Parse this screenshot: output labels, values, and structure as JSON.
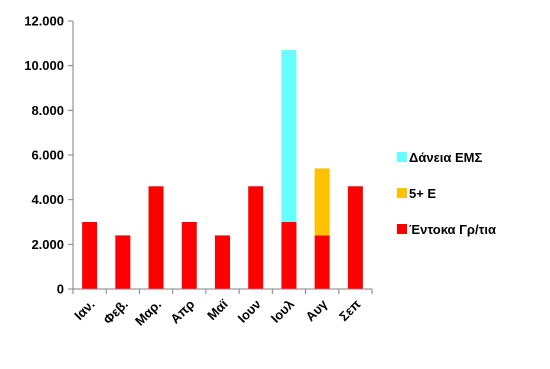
{
  "chart_data": {
    "type": "bar",
    "stacked": true,
    "categories": [
      "Ιαν.",
      "Φεβ.",
      "Μαρ.",
      "Απρ",
      "Μαϊ",
      "Ιουν",
      "Ιουλ",
      "Αυγ",
      "Σεπ"
    ],
    "series": [
      {
        "name": "Έντοκα Γρ/τια",
        "color": "#ff0000",
        "values": [
          3000,
          2400,
          4600,
          3000,
          2400,
          4600,
          3000,
          2400,
          4600
        ]
      },
      {
        "name": "5+ Ε",
        "color": "#ffc000",
        "values": [
          0,
          0,
          0,
          0,
          0,
          0,
          0,
          3000,
          0
        ]
      },
      {
        "name": "Δάνεια ΕΜΣ",
        "color": "#66ffff",
        "values": [
          0,
          0,
          0,
          0,
          0,
          0,
          7700,
          0,
          0
        ]
      }
    ],
    "y_ticks": [
      "0",
      "2.000",
      "4.000",
      "6.000",
      "8.000",
      "10.000",
      "12.000"
    ],
    "ylim": [
      0,
      12000
    ],
    "grid": false,
    "legend": {
      "position": "right",
      "order": [
        "Δάνεια ΕΜΣ",
        "5+ Ε",
        "Έντοκα Γρ/τια"
      ]
    }
  }
}
